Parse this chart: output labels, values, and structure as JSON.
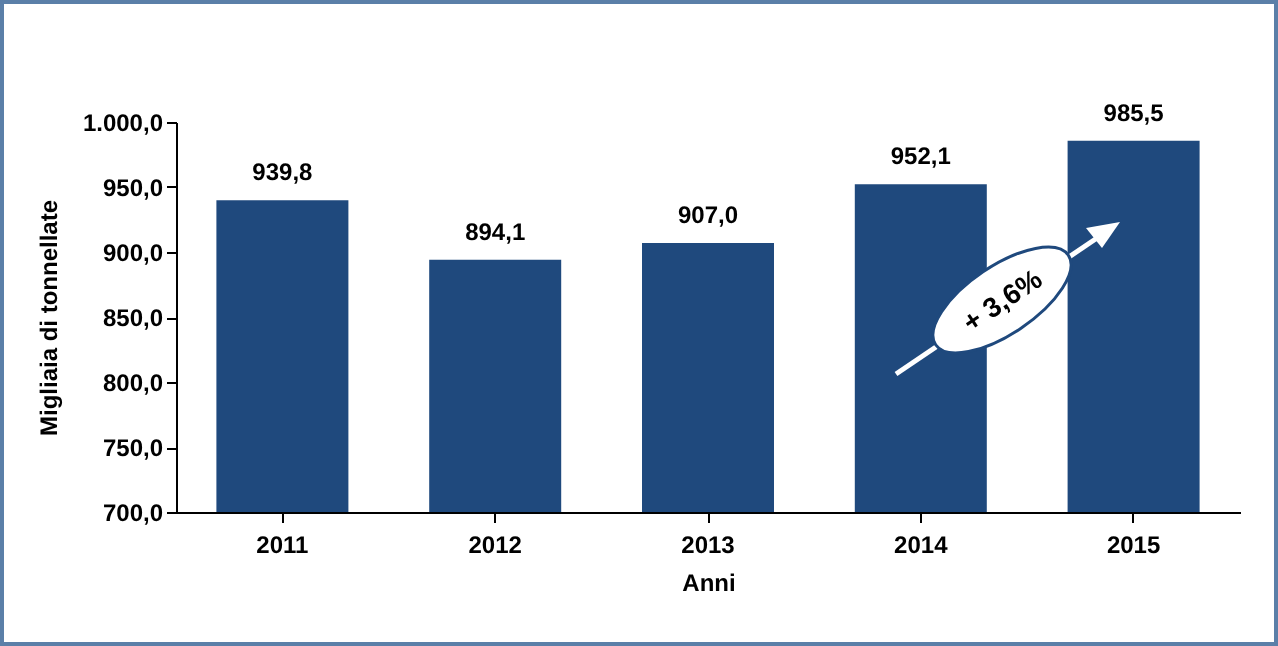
{
  "chart_data": {
    "type": "bar",
    "xlabel": "Anni",
    "ylabel": "Migliaia di tonnellate",
    "categories": [
      "2011",
      "2012",
      "2013",
      "2014",
      "2015"
    ],
    "values": [
      939.8,
      894.1,
      907.0,
      952.1,
      985.5
    ],
    "value_labels": [
      "939,8",
      "894,1",
      "907,0",
      "952,1",
      "985,5"
    ],
    "color": "#1f497d",
    "ylim": [
      700,
      1000
    ],
    "yticks": [
      {
        "value": 700,
        "label": "700,0"
      },
      {
        "value": 750,
        "label": "750,0"
      },
      {
        "value": 800,
        "label": "800,0"
      },
      {
        "value": 850,
        "label": "850,0"
      },
      {
        "value": 900,
        "label": "900,0"
      },
      {
        "value": 950,
        "label": "950,0"
      },
      {
        "value": 1000,
        "label": "1.000,0"
      }
    ],
    "annotations": [
      "+ 3,6%"
    ],
    "grid": false
  }
}
